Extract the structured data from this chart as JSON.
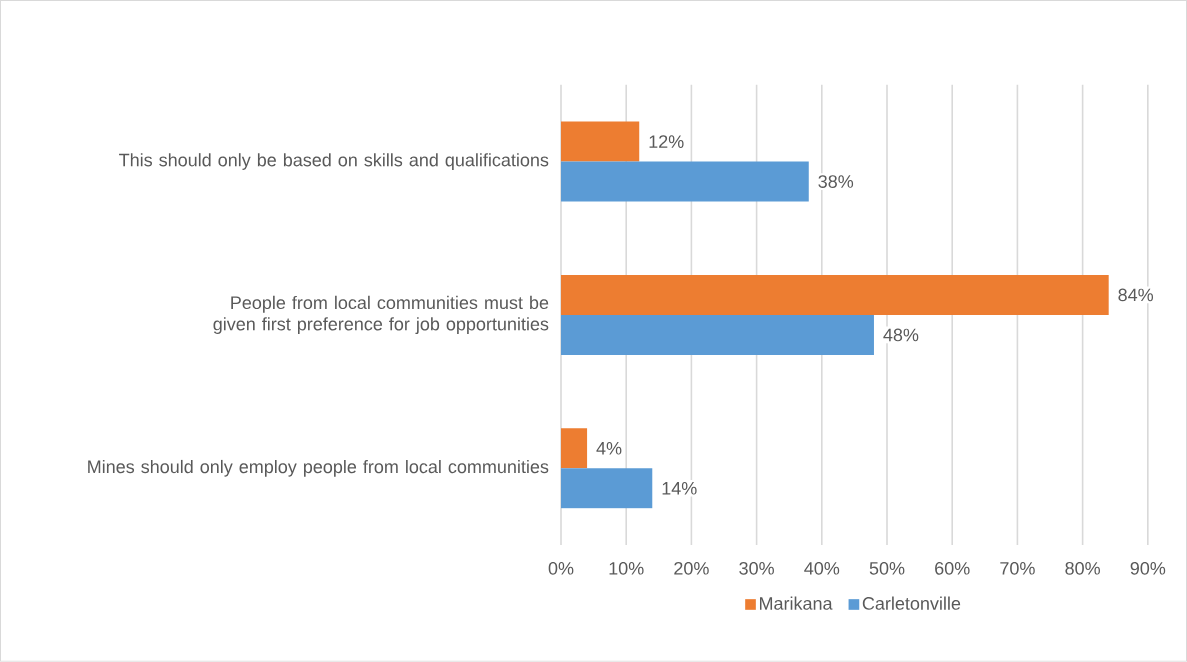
{
  "chart_data": {
    "type": "bar",
    "orientation": "horizontal",
    "categories": [
      "This should only be based on skills and qualifications",
      "People from local communities must be given first preference for job opportunities",
      "Mines should only employ people from local communities"
    ],
    "series": [
      {
        "name": "Marikana",
        "color": "#ed7d31",
        "values": [
          12,
          84,
          4
        ],
        "value_labels": [
          "12%",
          "84%",
          "4%"
        ]
      },
      {
        "name": "Carletonville",
        "color": "#5b9bd5",
        "values": [
          38,
          48,
          14
        ],
        "value_labels": [
          "38%",
          "48%",
          "14%"
        ]
      }
    ],
    "xlim": [
      0,
      90
    ],
    "xticks": [
      {
        "value": 0,
        "label": "0%"
      },
      {
        "value": 10,
        "label": "10%"
      },
      {
        "value": 20,
        "label": "20%"
      },
      {
        "value": 30,
        "label": "30%"
      },
      {
        "value": 40,
        "label": "40%"
      },
      {
        "value": 50,
        "label": "50%"
      },
      {
        "value": 60,
        "label": "60%"
      },
      {
        "value": 70,
        "label": "70%"
      },
      {
        "value": 80,
        "label": "80%"
      },
      {
        "value": 90,
        "label": "90%"
      }
    ],
    "grid": "x",
    "legend": "bottom"
  }
}
